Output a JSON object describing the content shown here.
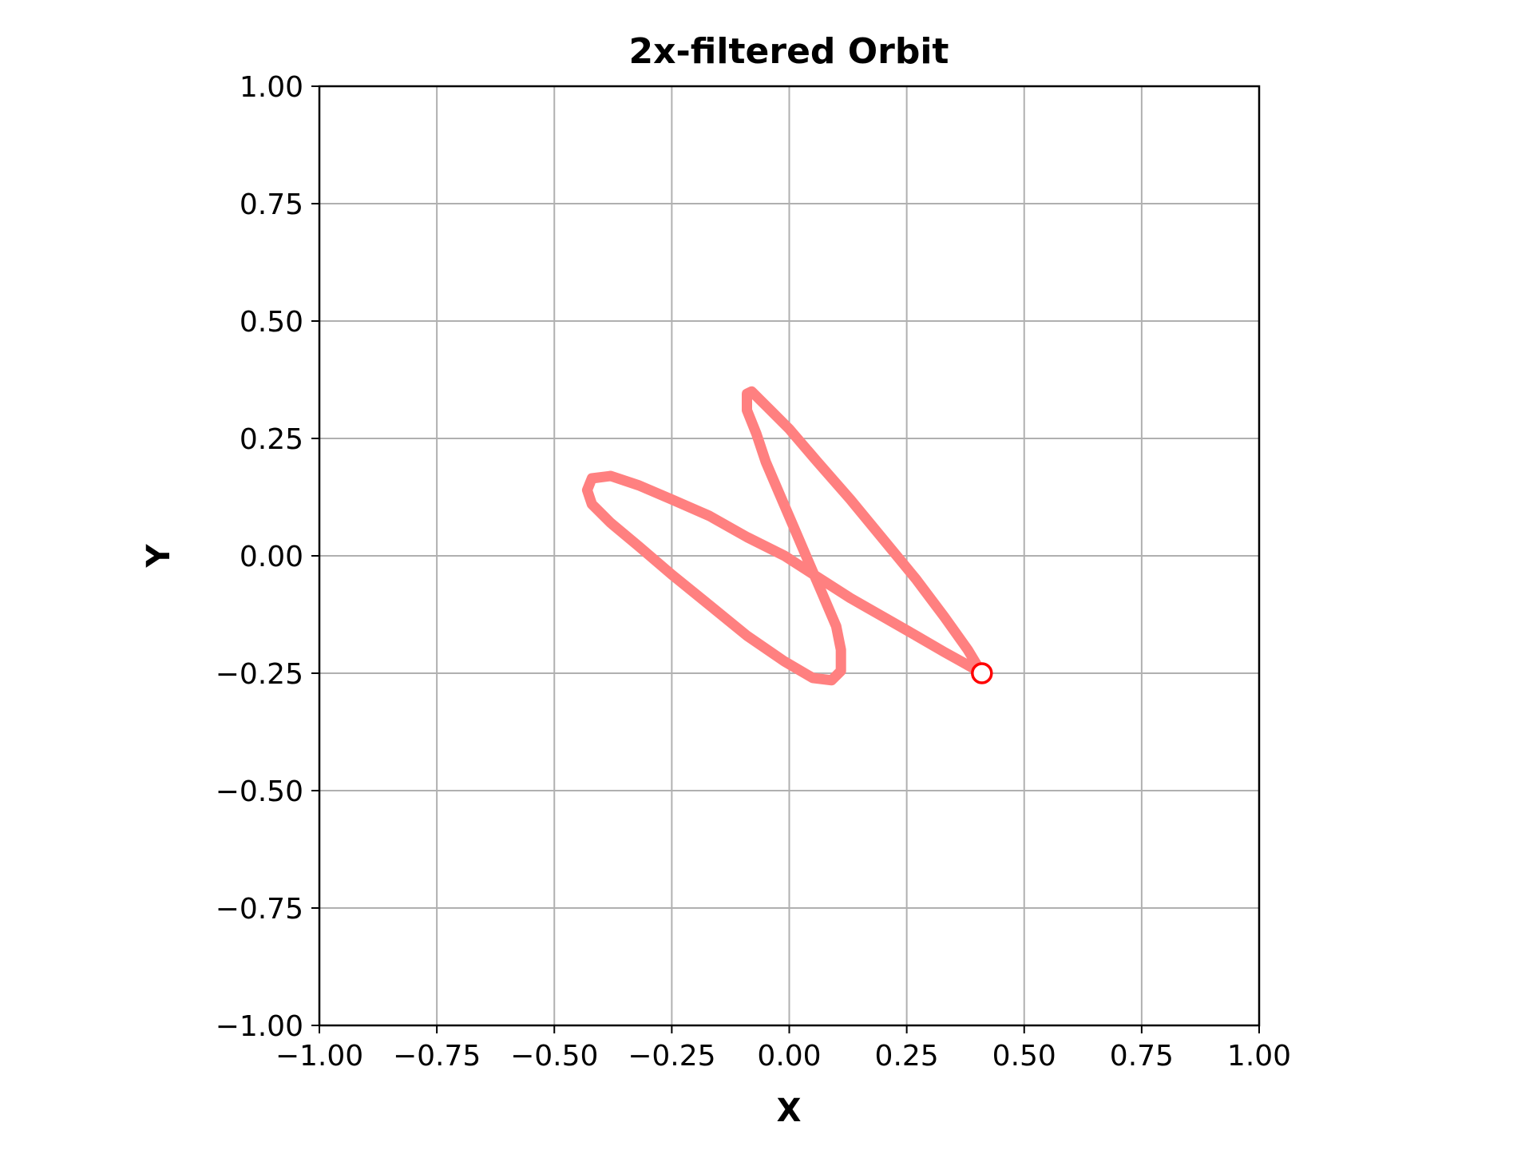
{
  "chart_data": {
    "type": "line",
    "title": "2x-filtered Orbit",
    "xlabel": "X",
    "ylabel": "Y",
    "xlim": [
      -1.0,
      1.0
    ],
    "ylim": [
      -1.0,
      1.0
    ],
    "grid": true,
    "xticks": [
      -1.0,
      -0.75,
      -0.5,
      -0.25,
      0.0,
      0.25,
      0.5,
      0.75,
      1.0
    ],
    "yticks": [
      -1.0,
      -0.75,
      -0.5,
      -0.25,
      0.0,
      0.25,
      0.5,
      0.75,
      1.0
    ],
    "xtick_labels": [
      "−1.00",
      "−0.75",
      "−0.50",
      "−0.25",
      "0.00",
      "0.25",
      "0.50",
      "0.75",
      "1.00"
    ],
    "ytick_labels": [
      "−1.00",
      "−0.75",
      "−0.50",
      "−0.25",
      "0.00",
      "0.25",
      "0.50",
      "0.75",
      "1.00"
    ],
    "series": [
      {
        "color": "#ff8080",
        "x": [
          0.41,
          0.375,
          0.33,
          0.27,
          0.2,
          0.13,
          0.06,
          -0.01,
          -0.09,
          -0.17,
          -0.25,
          -0.32,
          -0.38,
          -0.42,
          -0.43,
          -0.42,
          -0.38,
          -0.32,
          -0.25,
          -0.17,
          -0.09,
          -0.01,
          0.05,
          0.09,
          0.11,
          0.11,
          0.1,
          0.07,
          0.04,
          0.01,
          -0.02,
          -0.05,
          -0.07,
          -0.09,
          -0.09,
          -0.08,
          -0.05,
          0.0,
          0.06,
          0.13,
          0.2,
          0.27,
          0.33,
          0.38,
          0.41
        ],
        "y": [
          -0.25,
          -0.23,
          -0.205,
          -0.17,
          -0.13,
          -0.09,
          -0.045,
          0.0,
          0.04,
          0.085,
          0.12,
          0.15,
          0.17,
          0.165,
          0.14,
          0.11,
          0.07,
          0.02,
          -0.04,
          -0.105,
          -0.17,
          -0.225,
          -0.26,
          -0.265,
          -0.245,
          -0.2,
          -0.15,
          -0.08,
          -0.01,
          0.06,
          0.13,
          0.2,
          0.26,
          0.31,
          0.345,
          0.35,
          0.32,
          0.27,
          0.2,
          0.12,
          0.035,
          -0.05,
          -0.13,
          -0.2,
          -0.25
        ]
      }
    ],
    "marker": {
      "x": 0.41,
      "y": -0.25,
      "edgecolor": "#ff0000",
      "facecolor": "#ffffff"
    }
  }
}
